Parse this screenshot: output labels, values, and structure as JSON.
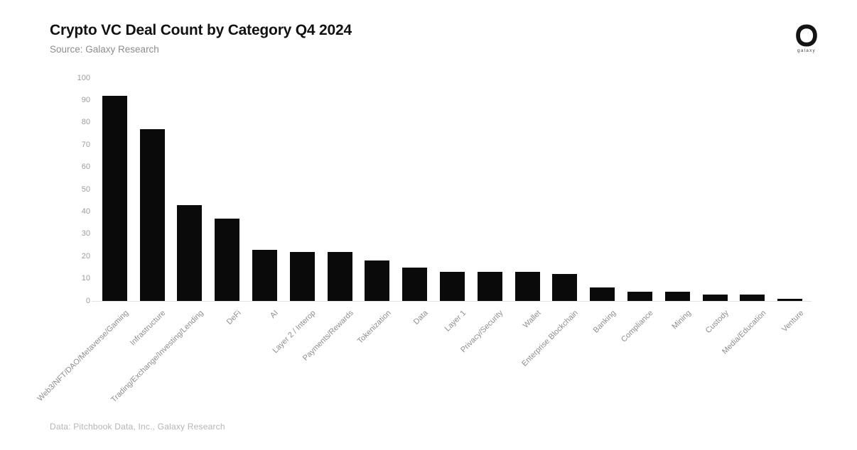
{
  "header": {
    "title": "Crypto VC Deal Count by Category Q4 2024",
    "source": "Source: Galaxy Research",
    "logo_text": "galaxy",
    "logo_icon": "galaxy-ring-icon"
  },
  "footer": {
    "credit": "Data: Pitchbook Data, Inc., Galaxy Research"
  },
  "colors": {
    "bar": "#0a0a0a",
    "axis_tick_label": "#9c9c9c",
    "category_label": "#8e8e8e",
    "subtitle": "#8d8d8d",
    "footer": "#b5b5b5",
    "baseline": "#e2e2e2",
    "background": "#ffffff",
    "title": "#111111"
  },
  "chart_data": {
    "type": "bar",
    "title": "Crypto VC Deal Count by Category Q4 2024",
    "subtitle": "Source: Galaxy Research",
    "categories": [
      "Web3/NFT/DAO/Metaverse/Gaming",
      "Infrastructure",
      "Trading/Exchange/Investing/Lending",
      "DeFi",
      "AI",
      "Layer 2 / Interop",
      "Payments/Rewards",
      "Tokenization",
      "Data",
      "Layer 1",
      "Privacy/Security",
      "Wallet",
      "Enterprise Blockchain",
      "Banking",
      "Compliance",
      "Mining",
      "Custody",
      "Media/Education",
      "Venture"
    ],
    "values": [
      92,
      77,
      43,
      37,
      23,
      22,
      22,
      18,
      15,
      13,
      13,
      13,
      12,
      6,
      4,
      4,
      3,
      3,
      1
    ],
    "xlabel": "",
    "ylabel": "",
    "ylim": [
      0,
      100
    ],
    "ytick_step": 10,
    "grid": false,
    "legend": false,
    "bar_color": "#0a0a0a",
    "category_label_rotation_deg": -45
  }
}
